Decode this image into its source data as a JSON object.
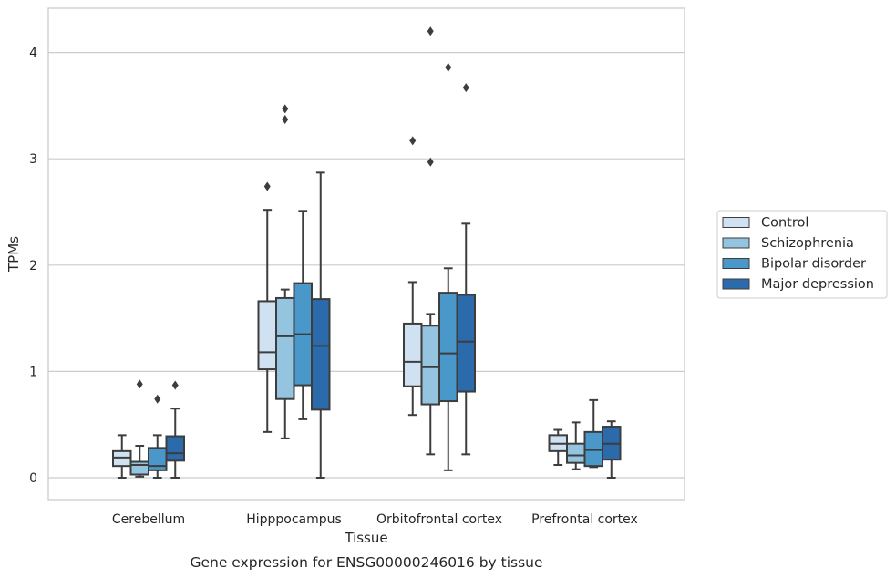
{
  "chart_data": {
    "type": "box",
    "caption": "Gene expression for ENSG00000246016 by tissue",
    "xlabel": "Tissue",
    "ylabel": "TPMs",
    "categories": [
      "Cerebellum",
      "Hipppocampus",
      "Orbitofrontal cortex",
      "Prefrontal cortex"
    ],
    "ylim": [
      -0.2,
      4.3
    ],
    "yticks": [
      0,
      1,
      2,
      3,
      4
    ],
    "grid": "horizontal",
    "legend_position": "right",
    "series": [
      {
        "name": "Control",
        "color": "#d0e1f1",
        "boxes": [
          {
            "whislo": 0.0,
            "q1": 0.11,
            "med": 0.19,
            "q3": 0.25,
            "whishi": 0.4,
            "fliers": []
          },
          {
            "whislo": 0.43,
            "q1": 1.02,
            "med": 1.18,
            "q3": 1.66,
            "whishi": 2.52,
            "fliers": [
              2.74
            ]
          },
          {
            "whislo": 0.59,
            "q1": 0.86,
            "med": 1.09,
            "q3": 1.45,
            "whishi": 1.84,
            "fliers": [
              3.17
            ]
          },
          {
            "whislo": 0.12,
            "q1": 0.25,
            "med": 0.32,
            "q3": 0.4,
            "whishi": 0.45,
            "fliers": []
          }
        ]
      },
      {
        "name": "Schizophrenia",
        "color": "#94c4df",
        "boxes": [
          {
            "whislo": 0.01,
            "q1": 0.03,
            "med": 0.12,
            "q3": 0.15,
            "whishi": 0.3,
            "fliers": [
              0.88
            ]
          },
          {
            "whislo": 0.37,
            "q1": 0.74,
            "med": 1.33,
            "q3": 1.69,
            "whishi": 1.77,
            "fliers": [
              3.37,
              3.47
            ]
          },
          {
            "whislo": 0.22,
            "q1": 0.69,
            "med": 1.04,
            "q3": 1.43,
            "whishi": 1.54,
            "fliers": [
              2.97,
              4.2
            ]
          },
          {
            "whislo": 0.08,
            "q1": 0.14,
            "med": 0.21,
            "q3": 0.32,
            "whishi": 0.52,
            "fliers": []
          }
        ]
      },
      {
        "name": "Bipolar disorder",
        "color": "#4a98c9",
        "boxes": [
          {
            "whislo": 0.0,
            "q1": 0.07,
            "med": 0.11,
            "q3": 0.28,
            "whishi": 0.4,
            "fliers": [
              0.74
            ]
          },
          {
            "whislo": 0.55,
            "q1": 0.87,
            "med": 1.35,
            "q3": 1.83,
            "whishi": 2.51,
            "fliers": []
          },
          {
            "whislo": 0.07,
            "q1": 0.72,
            "med": 1.17,
            "q3": 1.74,
            "whishi": 1.97,
            "fliers": [
              3.86
            ]
          },
          {
            "whislo": 0.1,
            "q1": 0.11,
            "med": 0.26,
            "q3": 0.43,
            "whishi": 0.73,
            "fliers": []
          }
        ]
      },
      {
        "name": "Major depression",
        "color": "#2b6aab",
        "boxes": [
          {
            "whislo": 0.0,
            "q1": 0.16,
            "med": 0.23,
            "q3": 0.39,
            "whishi": 0.65,
            "fliers": [
              0.87
            ]
          },
          {
            "whislo": 0.0,
            "q1": 0.64,
            "med": 1.24,
            "q3": 1.68,
            "whishi": 2.87,
            "fliers": []
          },
          {
            "whislo": 0.22,
            "q1": 0.81,
            "med": 1.28,
            "q3": 1.72,
            "whishi": 2.39,
            "fliers": [
              3.67
            ]
          },
          {
            "whislo": 0.0,
            "q1": 0.17,
            "med": 0.32,
            "q3": 0.48,
            "whishi": 0.53,
            "fliers": []
          }
        ]
      }
    ]
  }
}
